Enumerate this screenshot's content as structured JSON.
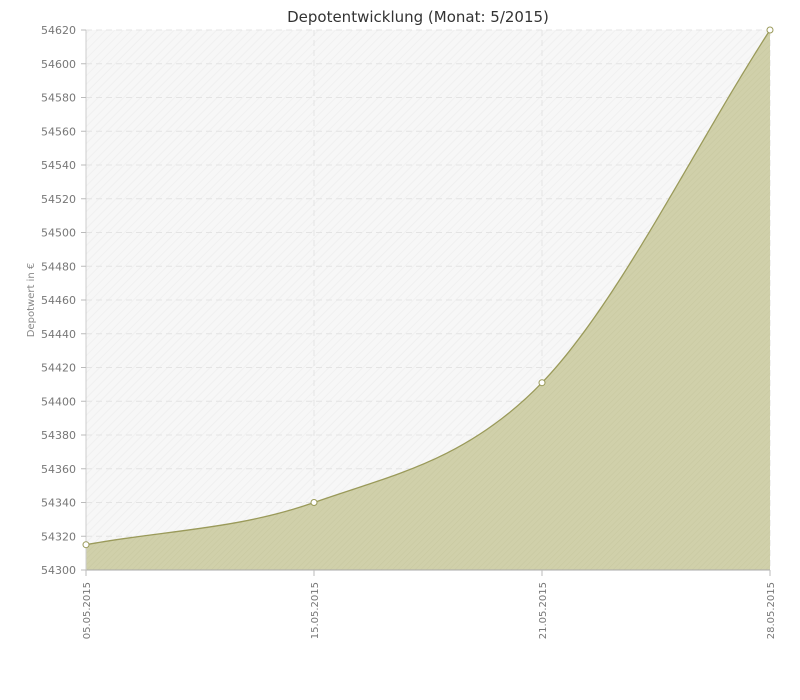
{
  "colors": {
    "area_fill": "#cfcfa8",
    "line": "#9a9a5a",
    "grid": "#e4e4e4",
    "axis": "#999999",
    "plot_bg": "#f8f8f8"
  },
  "chart_data": {
    "type": "area",
    "title": "Depotentwicklung (Monat: 5/2015)",
    "xlabel": "",
    "ylabel": "Depotwert in €",
    "categories": [
      "05.05.2015",
      "15.05.2015",
      "21.05.2015",
      "28.05.2015"
    ],
    "values": [
      54315,
      54340,
      54411,
      54620
    ],
    "ylim": [
      54300,
      54620
    ],
    "yticks": [
      54300,
      54320,
      54340,
      54360,
      54380,
      54400,
      54420,
      54440,
      54460,
      54480,
      54500,
      54520,
      54540,
      54560,
      54580,
      54600,
      54620
    ],
    "grid": true,
    "legend": "none"
  }
}
